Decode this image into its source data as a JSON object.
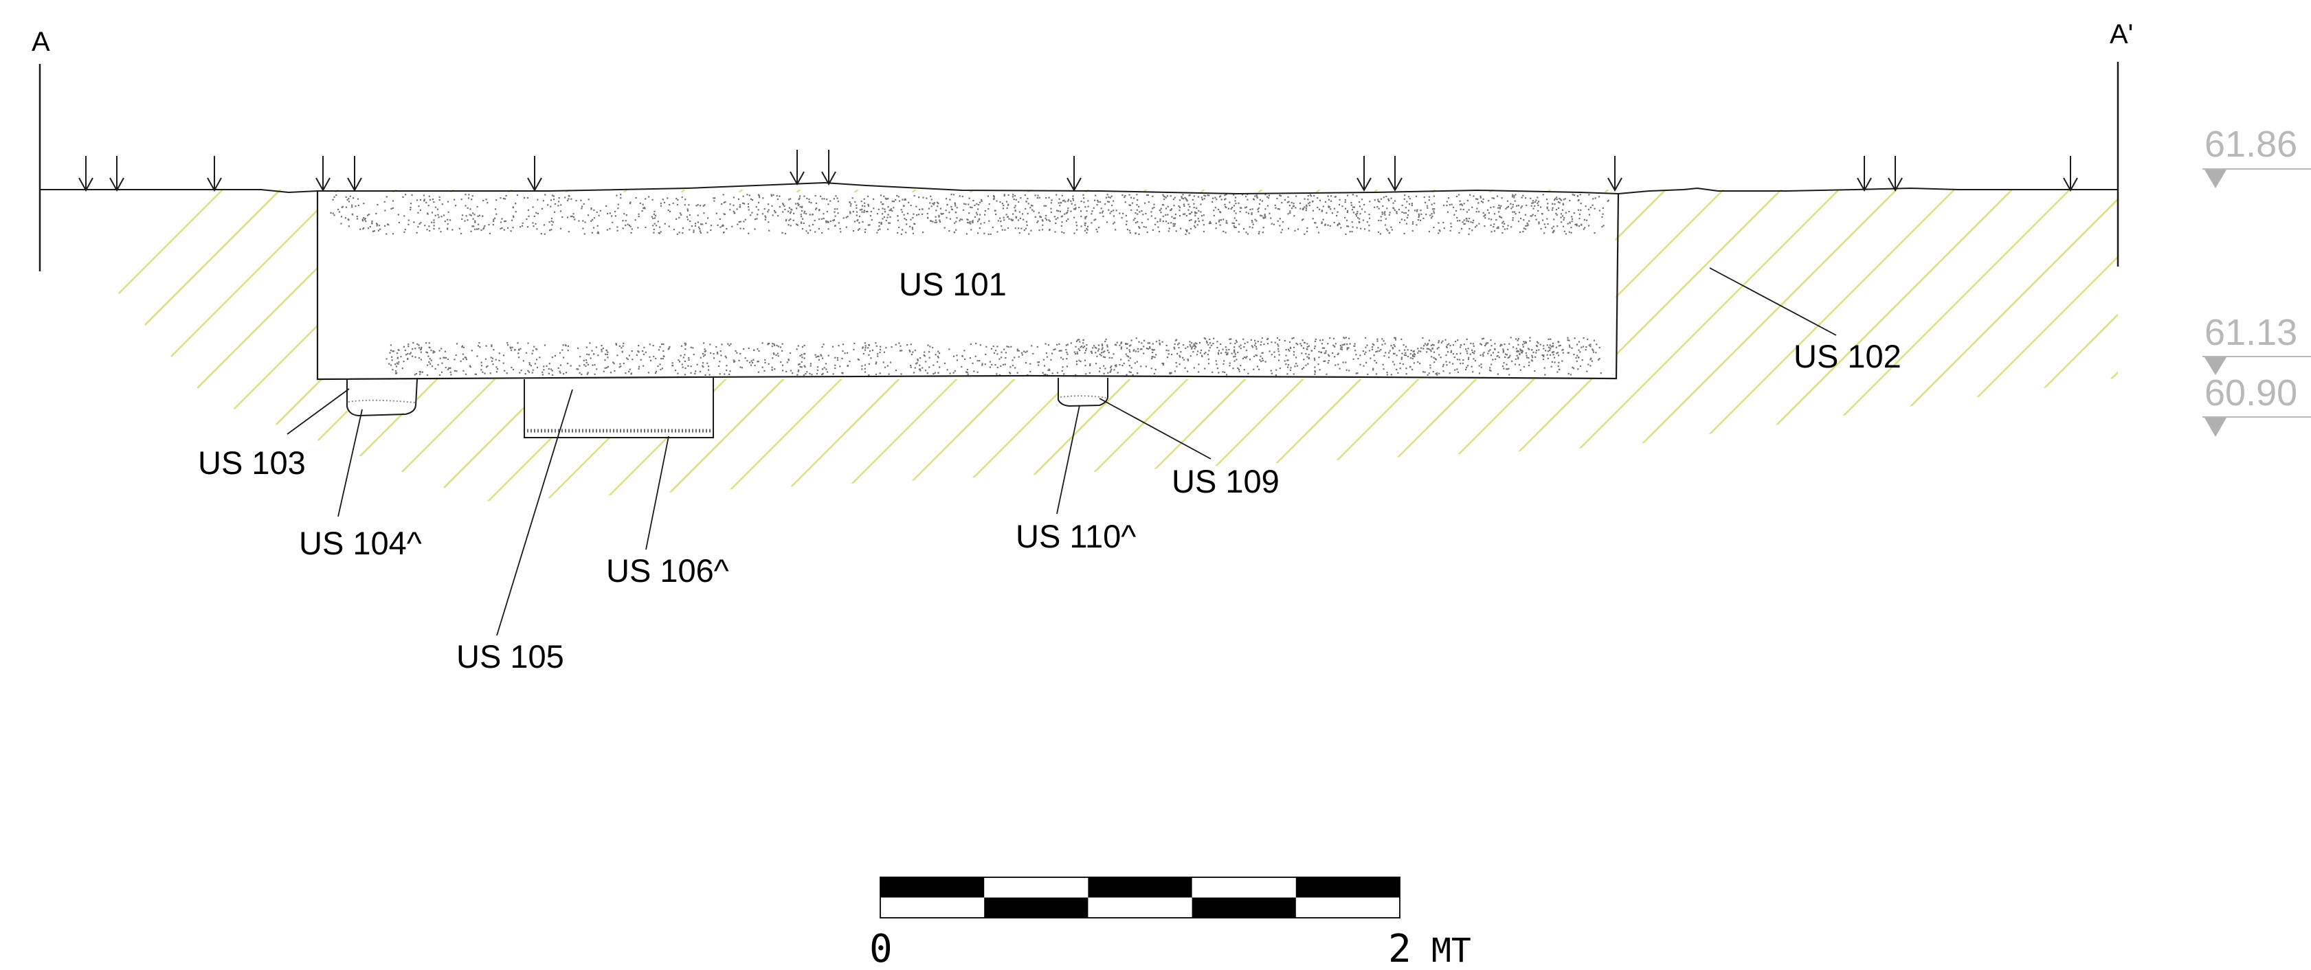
{
  "section": {
    "start_label": "A",
    "end_label": "A'"
  },
  "elevations": [
    {
      "id": "e1",
      "value": "61.86"
    },
    {
      "id": "e2",
      "value": "61.13"
    },
    {
      "id": "e3",
      "value": "60.90"
    }
  ],
  "units": [
    {
      "id": "us101",
      "label": "US 101"
    },
    {
      "id": "us102",
      "label": "US 102"
    },
    {
      "id": "us103",
      "label": "US 103"
    },
    {
      "id": "us104",
      "label": "US 104^"
    },
    {
      "id": "us105",
      "label": "US 105"
    },
    {
      "id": "us106",
      "label": "US 106^"
    },
    {
      "id": "us109",
      "label": "US 109"
    },
    {
      "id": "us110",
      "label": "US 110^"
    }
  ],
  "scale_bar": {
    "start": "0",
    "end": "2",
    "unit": "MT"
  },
  "colors": {
    "hatch": "#dede7a",
    "line": "#1a1a1a",
    "elevation": "#b8b8b8",
    "stipple": "#707070"
  }
}
